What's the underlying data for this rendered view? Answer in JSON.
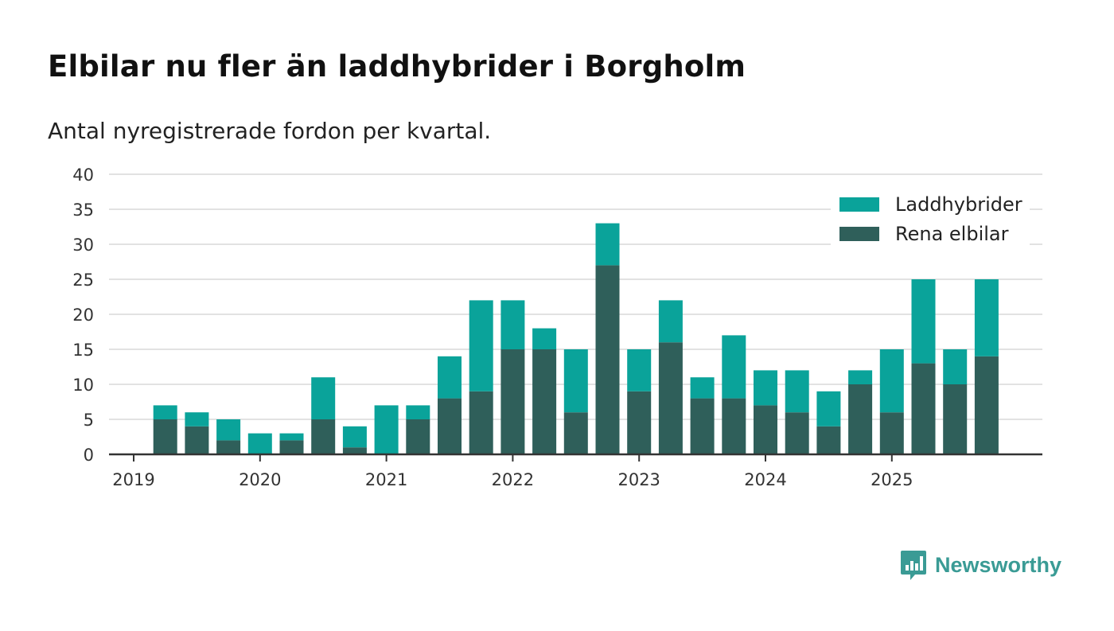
{
  "header": {
    "title": "Elbilar nu fler än laddhybrider i Borgholm",
    "subtitle": "Antal nyregistrerade fordon per kvartal."
  },
  "brand": {
    "name": "Newsworthy",
    "color": "#3a9b95",
    "icon": "newsworthy-logo-icon"
  },
  "colors": {
    "laddhybrider": "#0aa39a",
    "rena_elbilar": "#2f5f5a",
    "grid": "#d9d9d9",
    "axis": "#333333"
  },
  "chart_data": {
    "type": "bar",
    "stacked": true,
    "title": "Elbilar nu fler än laddhybrider i Borgholm",
    "subtitle": "Antal nyregistrerade fordon per kvartal.",
    "xlabel": "",
    "ylabel": "",
    "ylim": [
      0,
      40
    ],
    "yticks": [
      0,
      5,
      10,
      15,
      20,
      25,
      30,
      35,
      40
    ],
    "grid": true,
    "legend_position": "top-right",
    "x_tick_labels": [
      "2019",
      "2020",
      "2021",
      "2022",
      "2023",
      "2024",
      "2025"
    ],
    "categories": [
      "2019-Q1",
      "2019-Q2",
      "2019-Q3",
      "2019-Q4",
      "2020-Q1",
      "2020-Q2",
      "2020-Q3",
      "2020-Q4",
      "2021-Q1",
      "2021-Q2",
      "2021-Q3",
      "2021-Q4",
      "2022-Q1",
      "2022-Q2",
      "2022-Q3",
      "2022-Q4",
      "2023-Q1",
      "2023-Q2",
      "2023-Q3",
      "2023-Q4",
      "2024-Q1",
      "2024-Q2",
      "2024-Q3",
      "2024-Q4",
      "2025-Q1",
      "2025-Q2",
      "2025-Q3",
      "2025-Q4"
    ],
    "series": [
      {
        "name": "Rena elbilar",
        "values": [
          0,
          5,
          4,
          2,
          0,
          2,
          5,
          1,
          0,
          5,
          8,
          9,
          15,
          15,
          6,
          27,
          9,
          16,
          8,
          8,
          7,
          6,
          4,
          10,
          6,
          13,
          10,
          14
        ]
      },
      {
        "name": "Laddhybrider",
        "values": [
          0,
          2,
          2,
          3,
          3,
          1,
          6,
          3,
          7,
          2,
          6,
          13,
          7,
          3,
          9,
          6,
          6,
          6,
          3,
          9,
          5,
          6,
          5,
          2,
          9,
          12,
          5,
          11
        ]
      }
    ],
    "legend": [
      "Laddhybrider",
      "Rena elbilar"
    ]
  }
}
